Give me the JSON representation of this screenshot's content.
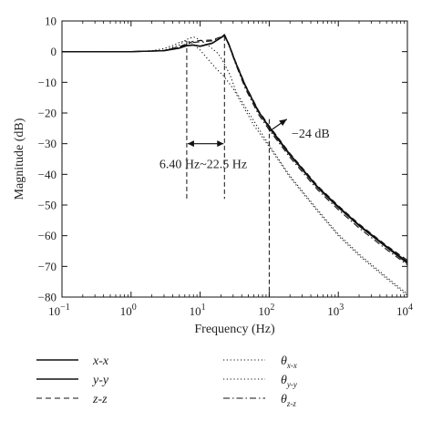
{
  "chart_data": {
    "type": "line",
    "xlabel": "Frequency (Hz)",
    "ylabel": "Magnitude (dB)",
    "x_scale": "log",
    "xlim": [
      0.1,
      10000
    ],
    "ylim": [
      -80,
      10
    ],
    "grid": false,
    "x_ticks": [
      {
        "value": 0.1,
        "base": "10",
        "exp": "−1"
      },
      {
        "value": 1,
        "base": "10",
        "exp": "0"
      },
      {
        "value": 10,
        "base": "10",
        "exp": "1"
      },
      {
        "value": 100,
        "base": "10",
        "exp": "2"
      },
      {
        "value": 1000,
        "base": "10",
        "exp": "3"
      },
      {
        "value": 10000,
        "base": "10",
        "exp": "4"
      }
    ],
    "y_ticks": [
      {
        "value": 10,
        "label": "10"
      },
      {
        "value": 0,
        "label": "0"
      },
      {
        "value": -10,
        "label": "−10"
      },
      {
        "value": -20,
        "label": "−20"
      },
      {
        "value": -30,
        "label": "−30"
      },
      {
        "value": -40,
        "label": "−40"
      },
      {
        "value": -50,
        "label": "−50"
      },
      {
        "value": -60,
        "label": "−60"
      },
      {
        "value": -70,
        "label": "−70"
      },
      {
        "value": -80,
        "label": "−80"
      }
    ],
    "legend_placement": "below",
    "series": [
      {
        "name": "x-x",
        "legend_main": "x-x",
        "legend_sub": "",
        "dash": "solid",
        "x": [
          0.1,
          1,
          3,
          5,
          6.4,
          8,
          10,
          15,
          20,
          22.5,
          26,
          32,
          45,
          70,
          100,
          200,
          500,
          1000,
          2000,
          5000,
          10000
        ],
        "y": [
          0,
          0,
          0.3,
          1.2,
          2.0,
          2.2,
          1.8,
          2.8,
          4.6,
          5.5,
          2.5,
          -3,
          -11,
          -19.5,
          -24.5,
          -33.5,
          -44,
          -50.5,
          -56.5,
          -63.5,
          -68.5
        ]
      },
      {
        "name": "y-y",
        "legend_main": "y-y",
        "legend_sub": "",
        "dash": "solid",
        "x": [
          0.1,
          1,
          3,
          5,
          6.4,
          8,
          10,
          15,
          20,
          22.5,
          26,
          32,
          45,
          70,
          100,
          200,
          500,
          1000,
          2000,
          5000,
          10000
        ],
        "y": [
          0,
          0,
          0.3,
          1.1,
          1.9,
          2.1,
          1.7,
          2.7,
          4.5,
          5.2,
          2.3,
          -3.2,
          -11.2,
          -19.7,
          -24.8,
          -33.8,
          -44.3,
          -50.8,
          -56.8,
          -63.8,
          -69
        ]
      },
      {
        "name": "z-z",
        "legend_main": "z-z",
        "legend_sub": "",
        "dash": "dashed",
        "x": [
          0.1,
          1,
          3,
          5,
          6.4,
          8,
          10,
          15,
          20,
          22.5,
          26,
          32,
          45,
          70,
          100,
          200,
          500,
          1000,
          2000,
          5000,
          10000
        ],
        "y": [
          0,
          0,
          0.4,
          1.6,
          2.6,
          3.4,
          3.6,
          3.8,
          4.8,
          5.6,
          2.6,
          -2.8,
          -10.8,
          -19.2,
          -24.2,
          -33.2,
          -43.7,
          -50.2,
          -56.2,
          -63.2,
          -68
        ]
      },
      {
        "name": "θx-x",
        "legend_main": "θ",
        "legend_sub": "x-x",
        "dash": "dotted",
        "x": [
          0.1,
          1,
          2,
          3,
          4,
          5,
          6,
          7,
          8,
          10,
          13,
          17,
          22,
          30,
          40,
          60,
          100,
          200,
          500,
          1000,
          2000,
          5000,
          10000
        ],
        "y": [
          0,
          0,
          0.3,
          1.0,
          2.0,
          3.0,
          3.5,
          3.2,
          2.3,
          0.5,
          -2.5,
          -5.5,
          -8,
          -12,
          -17,
          -24,
          -31,
          -41,
          -52,
          -60,
          -66.5,
          -74,
          -79.5
        ]
      },
      {
        "name": "θy-y",
        "legend_main": "θ",
        "legend_sub": "y-y",
        "dash": "dotted",
        "x": [
          0.1,
          1,
          3,
          5,
          6.4,
          8,
          10,
          14,
          18,
          20,
          23,
          27,
          33,
          45,
          70,
          100,
          200,
          500,
          1000,
          2000,
          5000,
          10000
        ],
        "y": [
          0,
          0,
          0.4,
          2.2,
          4.0,
          4.8,
          3.8,
          1.5,
          -0.5,
          -2.0,
          -4.5,
          -7.5,
          -13,
          -18,
          -25,
          -30.5,
          -40.5,
          -51.5,
          -59.5,
          -66,
          -73.5,
          -79
        ]
      },
      {
        "name": "θz-z",
        "legend_main": "θ",
        "legend_sub": "z-z",
        "dash": "dashdot",
        "x": [
          0.1,
          1,
          3,
          5,
          6.4,
          8,
          10,
          15,
          20,
          22.5,
          26,
          32,
          45,
          70,
          100,
          200,
          500,
          1000,
          2000,
          5000,
          10000
        ],
        "y": [
          0,
          0,
          0.3,
          1.5,
          2.4,
          3.0,
          3.2,
          3.5,
          4.7,
          5.3,
          2.2,
          -3.5,
          -12,
          -20.5,
          -25.5,
          -34.5,
          -45,
          -51.5,
          -57.5,
          -64.5,
          -69.5
        ]
      }
    ],
    "annotations": {
      "band_low": 6.4,
      "band_high": 22.5,
      "band_arrow_y": -30,
      "band_label": "6.40 Hz~22.5 Hz",
      "cutoff_x": 100,
      "cutoff_label": "−24 dB",
      "cutoff_arrow_from": {
        "x": 100,
        "y": -26
      },
      "cutoff_arrow_to": {
        "x": 180,
        "y": -22
      }
    }
  }
}
